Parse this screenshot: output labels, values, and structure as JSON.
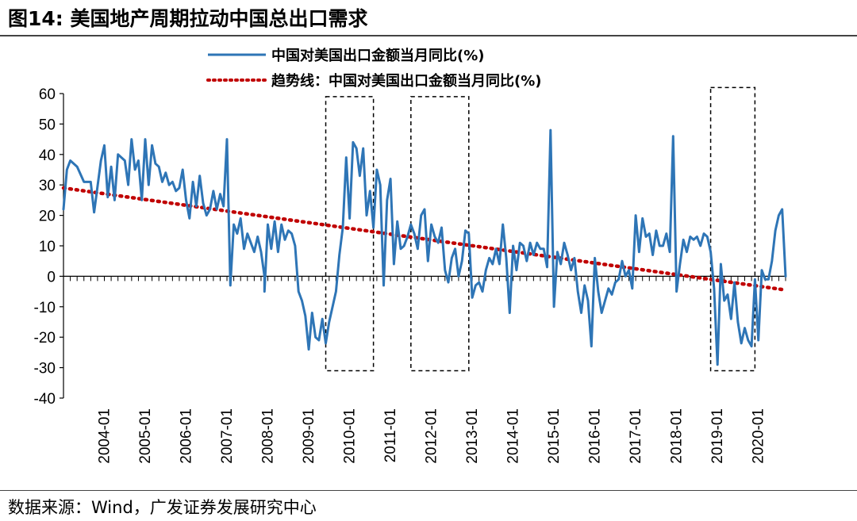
{
  "header": {
    "title": "图14:  美国地产周期拉动中国总出口需求"
  },
  "footer": {
    "source": "数据来源：Wind，广发证券发展研究中心"
  },
  "colors": {
    "series_line": "#2E75B6",
    "trend_line": "#C00000",
    "axis": "#000000",
    "highlight_box": "#000000"
  },
  "chart_data": {
    "type": "line",
    "title": "",
    "xlabel": "",
    "ylabel": "",
    "ylim": [
      -40,
      60
    ],
    "yticks": [
      60,
      50,
      40,
      30,
      20,
      10,
      0,
      -10,
      -20,
      -30,
      -40
    ],
    "x_tick_labels": [
      "2004-01",
      "2005-01",
      "2006-01",
      "2007-01",
      "2008-01",
      "2009-01",
      "2010-01",
      "2011-01",
      "2012-01",
      "2013-01",
      "2014-01",
      "2015-01",
      "2016-01",
      "2017-01",
      "2018-01",
      "2019-01",
      "2020-01"
    ],
    "x_start": "2003-01",
    "x_end": "2020-09",
    "grid": false,
    "legend_position": "top-center",
    "series": [
      {
        "name": "中国对美国出口金额当月同比(%)",
        "style": "solid",
        "color": "#2E75B6",
        "points": [
          [
            "2003-01",
            22
          ],
          [
            "2003-02",
            35
          ],
          [
            "2003-03",
            38
          ],
          [
            "2003-05",
            36
          ],
          [
            "2003-07",
            31
          ],
          [
            "2003-09",
            31
          ],
          [
            "2003-10",
            21
          ],
          [
            "2003-12",
            38
          ],
          [
            "2004-01",
            43
          ],
          [
            "2004-02",
            26
          ],
          [
            "2004-03",
            36
          ],
          [
            "2004-04",
            25
          ],
          [
            "2004-05",
            40
          ],
          [
            "2004-07",
            38
          ],
          [
            "2004-08",
            30
          ],
          [
            "2004-09",
            45
          ],
          [
            "2004-10",
            35
          ],
          [
            "2004-11",
            38
          ],
          [
            "2004-12",
            25
          ],
          [
            "2005-01",
            45
          ],
          [
            "2005-02",
            30
          ],
          [
            "2005-03",
            43
          ],
          [
            "2005-04",
            37
          ],
          [
            "2005-05",
            36
          ],
          [
            "2005-06",
            31
          ],
          [
            "2005-07",
            34
          ],
          [
            "2005-08",
            30
          ],
          [
            "2005-09",
            31
          ],
          [
            "2005-10",
            28
          ],
          [
            "2005-11",
            29
          ],
          [
            "2005-12",
            35
          ],
          [
            "2006-01",
            25
          ],
          [
            "2006-02",
            19
          ],
          [
            "2006-03",
            31
          ],
          [
            "2006-04",
            23
          ],
          [
            "2006-05",
            33
          ],
          [
            "2006-06",
            24
          ],
          [
            "2006-07",
            20
          ],
          [
            "2006-08",
            22
          ],
          [
            "2006-09",
            28
          ],
          [
            "2006-10",
            22
          ],
          [
            "2006-11",
            27
          ],
          [
            "2006-12",
            23
          ],
          [
            "2007-01",
            45
          ],
          [
            "2007-02",
            -3
          ],
          [
            "2007-03",
            17
          ],
          [
            "2007-04",
            14
          ],
          [
            "2007-05",
            19
          ],
          [
            "2007-06",
            9
          ],
          [
            "2007-07",
            14
          ],
          [
            "2007-08",
            11
          ],
          [
            "2007-09",
            8
          ],
          [
            "2007-10",
            13
          ],
          [
            "2007-11",
            8
          ],
          [
            "2007-12",
            0
          ],
          [
            "2007-12",
            -5
          ],
          [
            "2008-01",
            17
          ],
          [
            "2008-02",
            9
          ],
          [
            "2008-03",
            18
          ],
          [
            "2008-04",
            8
          ],
          [
            "2008-05",
            17
          ],
          [
            "2008-06",
            12
          ],
          [
            "2008-07",
            15
          ],
          [
            "2008-08",
            14
          ],
          [
            "2008-09",
            10
          ],
          [
            "2008-10",
            -5
          ],
          [
            "2008-11",
            -8
          ],
          [
            "2008-12",
            -13
          ],
          [
            "2009-01",
            -24
          ],
          [
            "2009-02",
            -12
          ],
          [
            "2009-03",
            -20
          ],
          [
            "2009-04",
            -21
          ],
          [
            "2009-05",
            -14
          ],
          [
            "2009-06",
            -22
          ],
          [
            "2009-07",
            -15
          ],
          [
            "2009-08",
            -10
          ],
          [
            "2009-09",
            -5
          ],
          [
            "2009-10",
            7
          ],
          [
            "2009-11",
            16
          ],
          [
            "2009-12",
            39
          ],
          [
            "2010-01",
            19
          ],
          [
            "2010-02",
            44
          ],
          [
            "2010-03",
            42
          ],
          [
            "2010-04",
            33
          ],
          [
            "2010-05",
            42
          ],
          [
            "2010-06",
            20
          ],
          [
            "2010-07",
            28
          ],
          [
            "2010-08",
            16
          ],
          [
            "2010-09",
            35
          ],
          [
            "2010-10",
            30
          ],
          [
            "2010-11",
            -3
          ],
          [
            "2010-12",
            25
          ],
          [
            "2011-01",
            32
          ],
          [
            "2011-02",
            4
          ],
          [
            "2011-03",
            18
          ],
          [
            "2011-04",
            9
          ],
          [
            "2011-05",
            10
          ],
          [
            "2011-06",
            13
          ],
          [
            "2011-07",
            17
          ],
          [
            "2011-08",
            14
          ],
          [
            "2011-09",
            9
          ],
          [
            "2011-10",
            20
          ],
          [
            "2011-11",
            22
          ],
          [
            "2011-12",
            5
          ],
          [
            "2012-01",
            17
          ],
          [
            "2012-02",
            13
          ],
          [
            "2012-03",
            11
          ],
          [
            "2012-04",
            16
          ],
          [
            "2012-05",
            2
          ],
          [
            "2012-06",
            -2
          ],
          [
            "2012-07",
            6
          ],
          [
            "2012-08",
            9
          ],
          [
            "2012-09",
            0
          ],
          [
            "2012-10",
            5
          ],
          [
            "2012-11",
            15
          ],
          [
            "2012-12",
            14
          ],
          [
            "2013-01",
            -7
          ],
          [
            "2013-02",
            -3
          ],
          [
            "2013-03",
            -2
          ],
          [
            "2013-04",
            -5
          ],
          [
            "2013-05",
            2
          ],
          [
            "2013-06",
            6
          ],
          [
            "2013-07",
            4
          ],
          [
            "2013-08",
            9
          ],
          [
            "2013-09",
            4
          ],
          [
            "2013-10",
            17
          ],
          [
            "2013-11",
            6
          ],
          [
            "2013-12",
            -12
          ],
          [
            "2014-01",
            10
          ],
          [
            "2014-02",
            2
          ],
          [
            "2014-03",
            11
          ],
          [
            "2014-04",
            10
          ],
          [
            "2014-05",
            5
          ],
          [
            "2014-06",
            11
          ],
          [
            "2014-07",
            7
          ],
          [
            "2014-08",
            11
          ],
          [
            "2014-09",
            9
          ],
          [
            "2014-10",
            9
          ],
          [
            "2014-11",
            3
          ],
          [
            "2014-12",
            48
          ],
          [
            "2015-01",
            -10
          ],
          [
            "2015-02",
            8
          ],
          [
            "2015-03",
            4
          ],
          [
            "2015-04",
            11
          ],
          [
            "2015-05",
            7
          ],
          [
            "2015-06",
            2
          ],
          [
            "2015-07",
            6
          ],
          [
            "2015-08",
            -5
          ],
          [
            "2015-09",
            -12
          ],
          [
            "2015-10",
            -3
          ],
          [
            "2015-11",
            -8
          ],
          [
            "2015-12",
            -23
          ],
          [
            "2016-01",
            6
          ],
          [
            "2016-02",
            -5
          ],
          [
            "2016-03",
            -12
          ],
          [
            "2016-04",
            -8
          ],
          [
            "2016-05",
            -4
          ],
          [
            "2016-06",
            -6
          ],
          [
            "2016-07",
            -2
          ],
          [
            "2016-08",
            -1
          ],
          [
            "2016-09",
            5
          ],
          [
            "2016-10",
            0
          ],
          [
            "2016-11",
            2
          ],
          [
            "2016-12",
            -4
          ],
          [
            "2017-01",
            20
          ],
          [
            "2017-02",
            8
          ],
          [
            "2017-03",
            19
          ],
          [
            "2017-04",
            13
          ],
          [
            "2017-05",
            14
          ],
          [
            "2017-06",
            7
          ],
          [
            "2017-07",
            15
          ],
          [
            "2017-08",
            10
          ],
          [
            "2017-09",
            10
          ],
          [
            "2017-10",
            14
          ],
          [
            "2017-11",
            8
          ],
          [
            "2017-12",
            46
          ],
          [
            "2018-01",
            -5
          ],
          [
            "2018-02",
            4
          ],
          [
            "2018-03",
            12
          ],
          [
            "2018-04",
            8
          ],
          [
            "2018-05",
            13
          ],
          [
            "2018-06",
            12
          ],
          [
            "2018-07",
            13
          ],
          [
            "2018-08",
            10
          ],
          [
            "2018-09",
            14
          ],
          [
            "2018-10",
            13
          ],
          [
            "2018-11",
            8
          ],
          [
            "2018-12",
            -4
          ],
          [
            "2019-01",
            -29
          ],
          [
            "2019-02",
            4
          ],
          [
            "2019-03",
            -8
          ],
          [
            "2019-04",
            -6
          ],
          [
            "2019-05",
            -14
          ],
          [
            "2019-06",
            -2
          ],
          [
            "2019-07",
            -15
          ],
          [
            "2019-08",
            -22
          ],
          [
            "2019-09",
            -17
          ],
          [
            "2019-10",
            -21
          ],
          [
            "2019-11",
            -23
          ],
          [
            "2019-12",
            -1
          ],
          [
            "2020-01",
            -21
          ],
          [
            "2020-02",
            2
          ],
          [
            "2020-03",
            -1
          ],
          [
            "2020-04",
            -1
          ],
          [
            "2020-05",
            5
          ],
          [
            "2020-06",
            15
          ],
          [
            "2020-07",
            20
          ],
          [
            "2020-08",
            22
          ],
          [
            "2020-09",
            0
          ]
        ]
      },
      {
        "name": "趋势线：中国对美国出口金额当月同比(%)",
        "style": "dotted",
        "color": "#C00000",
        "points": [
          [
            "2003-01",
            29
          ],
          [
            "2020-09",
            -4.5
          ]
        ]
      }
    ],
    "highlight_boxes": [
      {
        "x0": "2009-06",
        "x1": "2010-08",
        "y0": -31,
        "y1": 59
      },
      {
        "x0": "2011-07",
        "x1": "2012-12",
        "y0": -31,
        "y1": 59
      },
      {
        "x0": "2018-11",
        "x1": "2019-12",
        "y0": -31,
        "y1": 62
      }
    ]
  }
}
